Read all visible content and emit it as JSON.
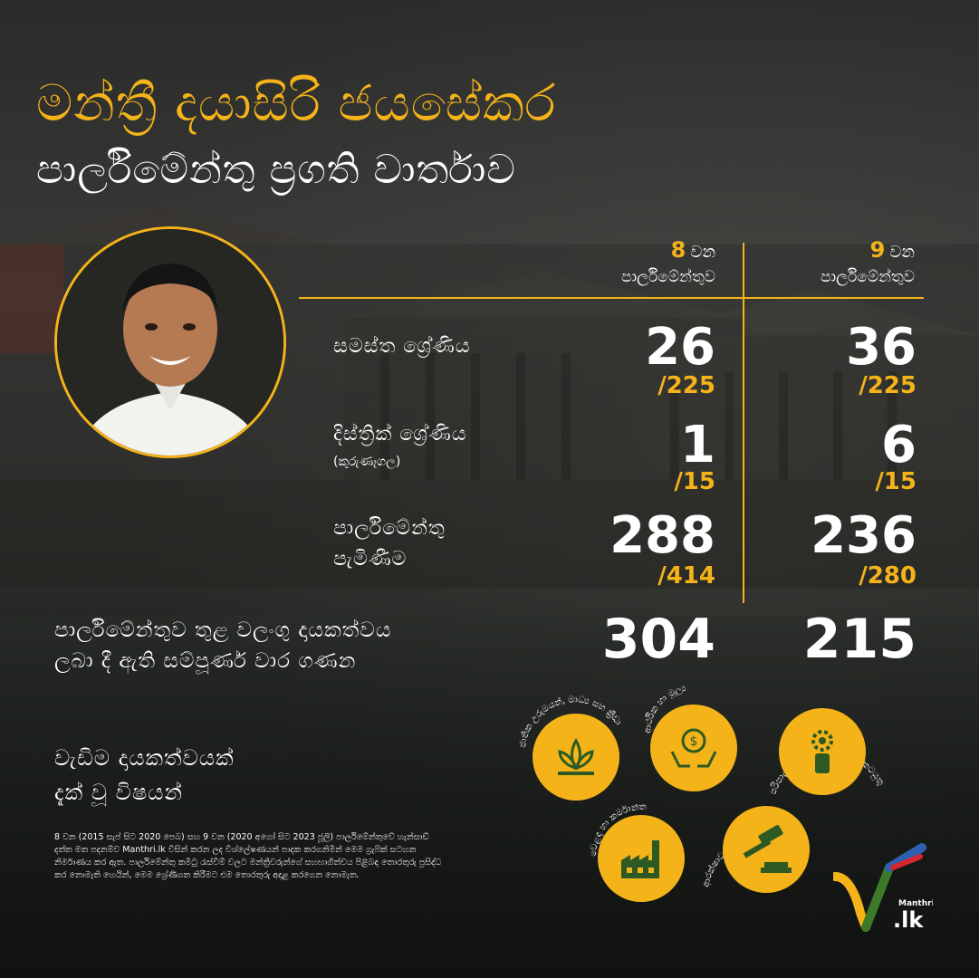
{
  "header": {
    "title": "මන්ත්‍රී දයාසිරි ජයසේකර",
    "subtitle": "පාර්ලිමේන්තු ප්‍රගති වාර්තාව"
  },
  "columns": [
    {
      "num": "8",
      "word": "වන",
      "label": "පාර්ලිමේන්තුව"
    },
    {
      "num": "9",
      "word": "වන",
      "label": "පාර්ලිමේන්තුව"
    }
  ],
  "rows": {
    "overall": {
      "label": "සමස්ත ශ්‍රේණිය",
      "p8": "26",
      "p8_den": "/225",
      "p9": "36",
      "p9_den": "/225"
    },
    "district": {
      "label": "දිස්ත්‍රික් ශ්‍රේණිය",
      "sublabel": "(කුරුණෑගල)",
      "p8": "1",
      "p8_den": "/15",
      "p9": "6",
      "p9_den": "/15"
    },
    "attendance": {
      "label_line1": "පාර්ලිමේන්තු",
      "label_line2": "පැමිණීම",
      "p8": "288",
      "p8_den": "/414",
      "p9": "236",
      "p9_den": "/280"
    },
    "contributions": {
      "label_line1": "පාර්ලිමේන්තුව තුළ වලංගු දායකත්වය",
      "label_line2": "ලබා දී ඇති සම්පූර්ණ වාර ගණන",
      "p8": "304",
      "p9": "215"
    }
  },
  "focus": {
    "heading_line1": "වැඩිම දායකත්වයක්",
    "heading_line2": "දැක් වූ විෂයන්",
    "topics": [
      {
        "label": "ජාතික උරුමයන්, මාධ්‍ය සහ ක්‍රීඩා",
        "icon": "lotus-icon"
      },
      {
        "label": "ආර්ථික හා මූල්‍ය",
        "icon": "money-hands-icon"
      },
      {
        "label": "පරිපාලන සහ පාර්ලිමේන්තු කටයුතු",
        "icon": "person-gear-icon"
      },
      {
        "label": "වෙළඳ හා කර්මාන්ත",
        "icon": "factory-icon"
      },
      {
        "label": "ආරක්ෂාව සහ මහජන ආරක්ෂාව",
        "icon": "gavel-icon"
      }
    ]
  },
  "footnote": "8 වන (2015 සැප් සිට 2020 පෙබ) සහ 9 වන (2020 අගෝ සිට 2023 ජූලි) පාර්ලිමේන්තුවේ හැන්සාඩ් දත්ත මත පදනම්ව Manthri.lk විසින් කරන ලද විශ්ලේෂණයන් පාදක කරගනිමින් මෙම ග්‍රැෆික් සටහන නිර්මාණය කර ඇත. පාර්ලිමේන්තු කමිටු රැස්වීම් වලට මන්ත්‍රීවරුන්ගේ සහභාගිත්වය පිළිබඳ තොරතුරු ප්‍රසිද්ධ කර නොමැති හෙයින්, මෙම ශ්‍රේණිගත කිරීමට එම තොරතුරු අදාළ කරගෙන නොමැත.",
  "logo": {
    "text": "Manthri",
    "domain": ".lk"
  },
  "colors": {
    "accent": "#f5b31a",
    "text": "#ffffff",
    "background": "#1f201e"
  }
}
